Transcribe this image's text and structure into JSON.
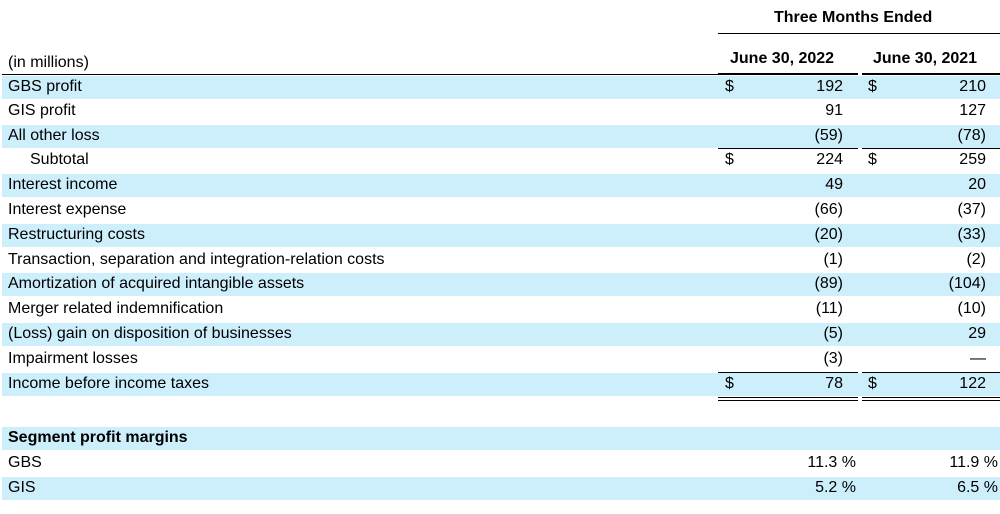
{
  "header": {
    "super_title": "Three Months Ended",
    "unit_label": "(in millions)",
    "col1": "June 30, 2022",
    "col2": "June 30, 2021"
  },
  "rows": [
    {
      "label": "GBS profit",
      "c1": "192",
      "c2": "210",
      "dollar": "$"
    },
    {
      "label": "GIS profit",
      "c1": "91",
      "c2": "127"
    },
    {
      "label": "All other loss",
      "c1": "(59)",
      "c2": "(78)"
    },
    {
      "label": "Subtotal",
      "c1": "224",
      "c2": "259",
      "dollar": "$"
    },
    {
      "label": "Interest income",
      "c1": "49",
      "c2": "20"
    },
    {
      "label": "Interest expense",
      "c1": "(66)",
      "c2": "(37)"
    },
    {
      "label": "Restructuring costs",
      "c1": "(20)",
      "c2": "(33)"
    },
    {
      "label": "Transaction, separation and integration-relation costs",
      "c1": "(1)",
      "c2": "(2)"
    },
    {
      "label": "Amortization of acquired intangible assets",
      "c1": "(89)",
      "c2": "(104)"
    },
    {
      "label": "Merger related indemnification",
      "c1": "(11)",
      "c2": "(10)"
    },
    {
      "label": "(Loss) gain on disposition of businesses",
      "c1": "(5)",
      "c2": "29"
    },
    {
      "label": "Impairment losses",
      "c1": "(3)",
      "c2": "—"
    },
    {
      "label": "Income before income taxes",
      "c1": "78",
      "c2": "122",
      "dollar": "$"
    }
  ],
  "margins": {
    "title": "Segment profit margins",
    "rows": [
      {
        "label": "GBS",
        "c1": "11.3 %",
        "c2": "11.9 %"
      },
      {
        "label": "GIS",
        "c1": "5.2 %",
        "c2": "6.5 %"
      }
    ]
  }
}
